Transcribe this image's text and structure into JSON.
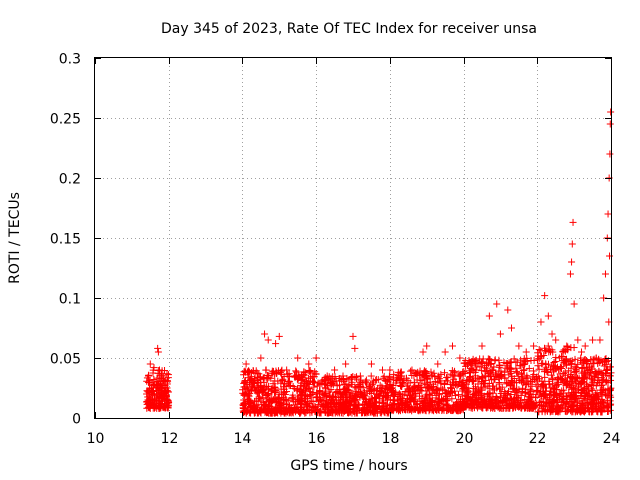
{
  "chart_data": {
    "type": "scatter",
    "title": "Day 345 of 2023, Rate Of TEC Index for receiver unsa",
    "xlabel": "GPS time / hours",
    "ylabel": "ROTI / TECUs",
    "xlim": [
      10,
      24
    ],
    "ylim": [
      0,
      0.3
    ],
    "xticks": [
      "10",
      "12",
      "14",
      "16",
      "18",
      "20",
      "22",
      "24"
    ],
    "yticks": [
      "0",
      "0.05",
      "0.1",
      "0.15",
      "0.2",
      "0.25",
      "0.3"
    ],
    "grid": true,
    "marker": "+",
    "marker_color": "#ff0000",
    "series": [
      {
        "name": "ROTI",
        "points": [
          [
            11.4,
            0.02
          ],
          [
            11.45,
            0.035
          ],
          [
            11.5,
            0.045
          ],
          [
            11.55,
            0.015
          ],
          [
            11.6,
            0.03
          ],
          [
            11.65,
            0.025
          ],
          [
            11.7,
            0.058
          ],
          [
            11.72,
            0.055
          ],
          [
            11.75,
            0.04
          ],
          [
            11.8,
            0.02
          ],
          [
            11.85,
            0.035
          ],
          [
            11.9,
            0.03
          ],
          [
            11.95,
            0.012
          ],
          [
            11.5,
            0.008
          ],
          [
            11.6,
            0.042
          ],
          [
            14.1,
            0.045
          ],
          [
            14.3,
            0.03
          ],
          [
            14.5,
            0.05
          ],
          [
            14.6,
            0.07
          ],
          [
            14.7,
            0.065
          ],
          [
            14.9,
            0.062
          ],
          [
            15.0,
            0.068
          ],
          [
            15.2,
            0.04
          ],
          [
            15.5,
            0.05
          ],
          [
            15.8,
            0.045
          ],
          [
            16.0,
            0.05
          ],
          [
            16.3,
            0.035
          ],
          [
            16.5,
            0.04
          ],
          [
            16.8,
            0.045
          ],
          [
            17.0,
            0.068
          ],
          [
            17.05,
            0.058
          ],
          [
            17.2,
            0.035
          ],
          [
            17.5,
            0.045
          ],
          [
            17.8,
            0.04
          ],
          [
            18.0,
            0.04
          ],
          [
            18.3,
            0.035
          ],
          [
            18.6,
            0.04
          ],
          [
            18.9,
            0.055
          ],
          [
            19.0,
            0.06
          ],
          [
            19.3,
            0.045
          ],
          [
            19.5,
            0.055
          ],
          [
            19.7,
            0.06
          ],
          [
            19.9,
            0.05
          ],
          [
            20.2,
            0.045
          ],
          [
            20.5,
            0.06
          ],
          [
            20.7,
            0.085
          ],
          [
            20.9,
            0.095
          ],
          [
            21.0,
            0.07
          ],
          [
            21.2,
            0.09
          ],
          [
            21.3,
            0.075
          ],
          [
            21.5,
            0.06
          ],
          [
            21.7,
            0.055
          ],
          [
            21.9,
            0.06
          ],
          [
            22.1,
            0.08
          ],
          [
            22.2,
            0.102
          ],
          [
            22.3,
            0.085
          ],
          [
            22.4,
            0.07
          ],
          [
            22.5,
            0.065
          ],
          [
            22.6,
            0.05
          ],
          [
            22.7,
            0.055
          ],
          [
            22.8,
            0.06
          ],
          [
            22.9,
            0.12
          ],
          [
            22.93,
            0.13
          ],
          [
            22.95,
            0.145
          ],
          [
            22.97,
            0.163
          ],
          [
            23.0,
            0.095
          ],
          [
            23.1,
            0.065
          ],
          [
            23.2,
            0.055
          ],
          [
            23.3,
            0.06
          ],
          [
            23.5,
            0.065
          ],
          [
            23.6,
            0.05
          ],
          [
            23.7,
            0.065
          ],
          [
            23.8,
            0.1
          ],
          [
            23.85,
            0.12
          ],
          [
            23.9,
            0.15
          ],
          [
            23.92,
            0.17
          ],
          [
            23.95,
            0.2
          ],
          [
            23.97,
            0.22
          ],
          [
            23.98,
            0.245
          ],
          [
            23.99,
            0.255
          ],
          [
            23.96,
            0.135
          ],
          [
            23.94,
            0.08
          ]
        ],
        "bands": [
          {
            "x_start": 11.4,
            "x_end": 12.0,
            "y_low": 0.008,
            "y_high": 0.04,
            "count": 170
          },
          {
            "x_start": 14.0,
            "x_end": 16.0,
            "y_low": 0.004,
            "y_high": 0.04,
            "count": 520
          },
          {
            "x_start": 16.0,
            "x_end": 18.0,
            "y_low": 0.004,
            "y_high": 0.035,
            "count": 480
          },
          {
            "x_start": 18.0,
            "x_end": 20.0,
            "y_low": 0.006,
            "y_high": 0.04,
            "count": 460
          },
          {
            "x_start": 20.0,
            "x_end": 22.0,
            "y_low": 0.008,
            "y_high": 0.05,
            "count": 500
          },
          {
            "x_start": 22.0,
            "x_end": 23.0,
            "y_low": 0.005,
            "y_high": 0.06,
            "count": 300
          },
          {
            "x_start": 23.0,
            "x_end": 24.0,
            "y_low": 0.005,
            "y_high": 0.05,
            "count": 320
          }
        ]
      }
    ]
  }
}
